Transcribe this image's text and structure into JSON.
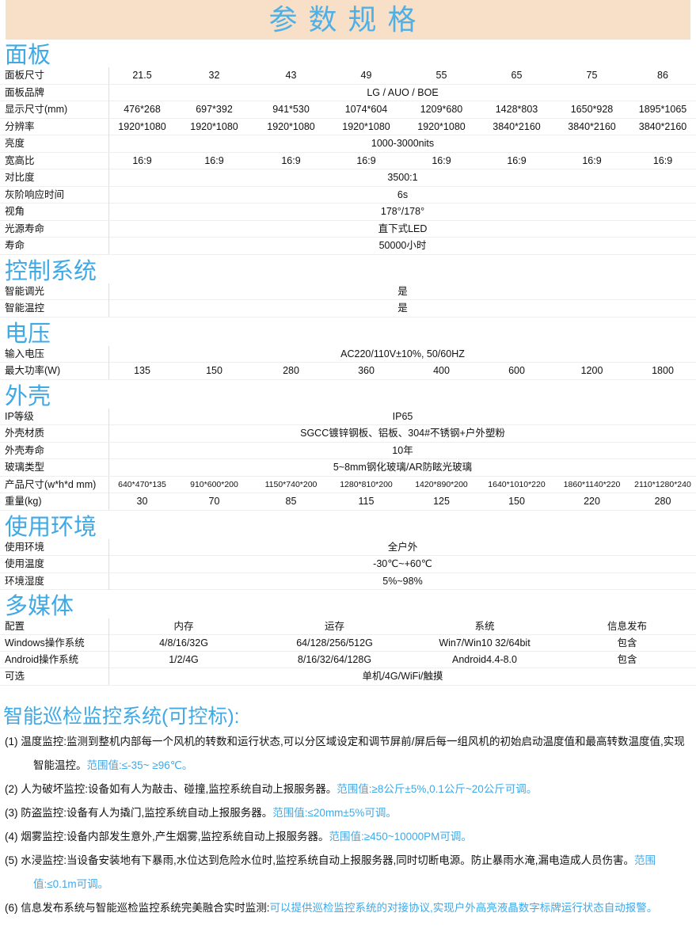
{
  "title": "参数规格",
  "panel": {
    "heading": "面板",
    "rows": [
      {
        "label": "面板尺寸",
        "values": [
          "21.5",
          "32",
          "43",
          "49",
          "55",
          "65",
          "75",
          "86"
        ]
      },
      {
        "label": "面板品牌",
        "value": "LG / AUO / BOE"
      },
      {
        "label": "显示尺寸(mm)",
        "values": [
          "476*268",
          "697*392",
          "941*530",
          "1074*604",
          "1209*680",
          "1428*803",
          "1650*928",
          "1895*1065"
        ]
      },
      {
        "label": "分辨率",
        "values": [
          "1920*1080",
          "1920*1080",
          "1920*1080",
          "1920*1080",
          "1920*1080",
          "3840*2160",
          "3840*2160",
          "3840*2160"
        ]
      },
      {
        "label": "亮度",
        "value": "1000-3000nits"
      },
      {
        "label": "宽高比",
        "values": [
          "16:9",
          "16:9",
          "16:9",
          "16:9",
          "16:9",
          "16:9",
          "16:9",
          "16:9"
        ]
      },
      {
        "label": "对比度",
        "value": "3500:1"
      },
      {
        "label": "灰阶响应时间",
        "value": "6s"
      },
      {
        "label": "视角",
        "value": "178°/178°"
      },
      {
        "label": "光源寿命",
        "value": "直下式LED"
      },
      {
        "label": "寿命",
        "value": "50000小时"
      }
    ]
  },
  "control": {
    "heading": "控制系统",
    "rows": [
      {
        "label": "智能调光",
        "value": "是"
      },
      {
        "label": "智能温控",
        "value": "是"
      }
    ]
  },
  "power": {
    "heading": "电压",
    "rows": [
      {
        "label": "输入电压",
        "value": "AC220/110V±10%, 50/60HZ"
      },
      {
        "label": "最大功率(W)",
        "values": [
          "135",
          "150",
          "280",
          "360",
          "400",
          "600",
          "1200",
          "1800"
        ]
      }
    ]
  },
  "shell": {
    "heading": "外壳",
    "rows": [
      {
        "label": "IP等级",
        "value": "IP65"
      },
      {
        "label": "外壳材质",
        "value": "SGCC镀锌钢板、铝板、304#不锈钢+户外塑粉"
      },
      {
        "label": "外壳寿命",
        "value": "10年"
      },
      {
        "label": "玻璃类型",
        "value": "5~8mm钢化玻璃/AR防眩光玻璃"
      },
      {
        "label": "产品尺寸(w*h*d mm)",
        "values": [
          "640*470*135",
          "910*600*200",
          "1150*740*200",
          "1280*810*200",
          "1420*890*200",
          "1640*1010*220",
          "1860*1140*220",
          "2110*1280*240"
        ]
      },
      {
        "label": "重量(kg)",
        "values": [
          "30",
          "70",
          "85",
          "115",
          "125",
          "150",
          "220",
          "280"
        ]
      }
    ]
  },
  "env": {
    "heading": "使用环境",
    "rows": [
      {
        "label": "使用环境",
        "value": "全户外"
      },
      {
        "label": "使用温度",
        "value": "-30℃~+60℃"
      },
      {
        "label": "环境湿度",
        "value": "5%~98%"
      }
    ]
  },
  "media": {
    "heading": "多媒体",
    "rows": [
      {
        "label": "配置",
        "values": [
          "内存",
          "运存",
          "系统",
          "信息发布"
        ]
      },
      {
        "label": "Windows操作系统",
        "values": [
          "4/8/16/32G",
          "64/128/256/512G",
          "Win7/Win10  32/64bit",
          "包含"
        ]
      },
      {
        "label": "Android操作系统",
        "values": [
          "1/2/4G",
          "8/16/32/64/128G",
          "Android4.4-8.0",
          "包含"
        ]
      },
      {
        "label": "可选",
        "value": "单机/4G/WiFi/触摸"
      }
    ]
  },
  "monitor": {
    "heading": "智能巡检监控系统(可控标):",
    "items": [
      {
        "text": "(1) 温度监控:监测到整机内部每一个风机的转数和运行状态,可以分区域设定和调节屏前/屏后每一组风机的初始启动温度值和最高转数温度值,实现智能温控。",
        "range": "范围值:≤-35~ ≥96℃。"
      },
      {
        "text": "(2) 人为破坏监控:设备如有人为敲击、碰撞,监控系统自动上报服务器。",
        "range": "范围值:≥8公斤±5%,0.1公斤~20公斤可调。"
      },
      {
        "text": "(3)  防盗监控:设备有人为撬门,监控系统自动上报服务器。",
        "range": "范围值:≤20mm±5%可调。"
      },
      {
        "text": "(4) 烟雾监控:设备内部发生意外,产生烟雾,监控系统自动上报服务器。",
        "range": "范围值:≥450~10000PM可调。"
      },
      {
        "text": "(5) 水浸监控:当设备安装地有下暴雨,水位达到危险水位时,监控系统自动上报服务器,同时切断电源。防止暴雨水淹,漏电造成人员伤害。",
        "range": "范围值:≤0.1m可调。"
      },
      {
        "text": "(6) 信息发布系统与智能巡检监控系统完美融合实时监测:",
        "range": "可以提供巡检监控系统的对接协议,实现户外高亮液晶数字标牌运行状态自动报警。"
      }
    ]
  }
}
